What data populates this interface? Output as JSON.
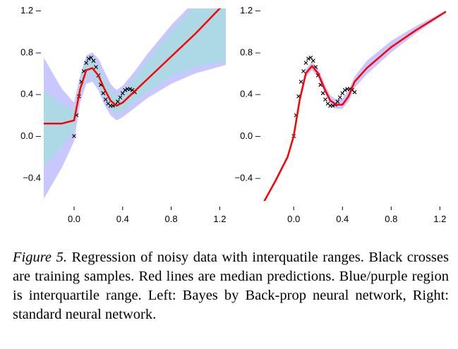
{
  "caption": {
    "label": "Figure 5.",
    "text": "Regression of noisy data with interquatile ranges. Black crosses are training samples. Red lines are median predictions. Blue/purple region is interquartile range. Left: Bayes by Back-prop neural network, Right: standard neural network."
  },
  "colors": {
    "samples": "#000000",
    "median": "#ff0000",
    "iqr_inner": "#add8e6",
    "iqr_outer": "#c8c8ff"
  },
  "chart_data": [
    {
      "type": "line",
      "title": "",
      "xlabel": "",
      "ylabel": "",
      "xlim": [
        -0.25,
        1.25
      ],
      "ylim": [
        -0.62,
        1.22
      ],
      "xticks": [
        0.0,
        0.4,
        0.8,
        1.2
      ],
      "xtick_labels": [
        "0.0",
        "0.4",
        "0.8",
        "1.2"
      ],
      "yticks": [
        -0.4,
        0.0,
        0.4,
        0.8,
        1.2
      ],
      "ytick_labels": [
        "−0.4",
        "0.0 –",
        "0.4 –",
        "0.8 –",
        "1.2 –"
      ],
      "grid": false,
      "legend": "none",
      "series": [
        {
          "role": "training samples",
          "x": [
            0.0,
            0.02,
            0.04,
            0.06,
            0.08,
            0.1,
            0.12,
            0.14,
            0.16,
            0.18,
            0.2,
            0.22,
            0.24,
            0.26,
            0.28,
            0.3,
            0.32,
            0.34,
            0.36,
            0.38,
            0.4,
            0.42,
            0.44,
            0.46,
            0.48,
            0.5
          ],
          "y": [
            0.0,
            0.2,
            0.38,
            0.52,
            0.62,
            0.7,
            0.74,
            0.75,
            0.72,
            0.66,
            0.58,
            0.49,
            0.41,
            0.35,
            0.31,
            0.29,
            0.29,
            0.3,
            0.33,
            0.37,
            0.41,
            0.44,
            0.45,
            0.45,
            0.44,
            0.42
          ]
        },
        {
          "role": "median prediction",
          "x": [
            -0.25,
            -0.1,
            0.0,
            0.05,
            0.1,
            0.15,
            0.2,
            0.25,
            0.3,
            0.35,
            0.4,
            0.5,
            0.6,
            0.8,
            1.0,
            1.2,
            1.25
          ],
          "y": [
            0.12,
            0.12,
            0.15,
            0.45,
            0.63,
            0.65,
            0.58,
            0.45,
            0.34,
            0.29,
            0.32,
            0.43,
            0.54,
            0.76,
            0.98,
            1.22,
            1.27
          ]
        },
        {
          "role": "interquartile range (inner)",
          "x": [
            -0.25,
            -0.1,
            0.0,
            0.05,
            0.1,
            0.15,
            0.2,
            0.25,
            0.3,
            0.35,
            0.4,
            0.5,
            0.6,
            0.8,
            1.0,
            1.25
          ],
          "lower": [
            -0.3,
            -0.1,
            0.05,
            0.38,
            0.56,
            0.58,
            0.5,
            0.36,
            0.26,
            0.21,
            0.24,
            0.33,
            0.42,
            0.57,
            0.66,
            0.72
          ],
          "upper": [
            0.45,
            0.3,
            0.25,
            0.53,
            0.72,
            0.74,
            0.68,
            0.55,
            0.44,
            0.38,
            0.42,
            0.56,
            0.72,
            1.0,
            1.25,
            1.35
          ]
        },
        {
          "role": "interquartile range (outer)",
          "x": [
            -0.25,
            -0.1,
            0.0,
            0.05,
            0.1,
            0.15,
            0.2,
            0.25,
            0.3,
            0.35,
            0.4,
            0.5,
            0.6,
            0.8,
            1.0,
            1.25
          ],
          "lower": [
            -0.6,
            -0.3,
            -0.05,
            0.32,
            0.5,
            0.52,
            0.44,
            0.3,
            0.2,
            0.15,
            0.18,
            0.27,
            0.36,
            0.5,
            0.6,
            0.68
          ],
          "upper": [
            0.75,
            0.45,
            0.32,
            0.58,
            0.77,
            0.8,
            0.74,
            0.62,
            0.5,
            0.44,
            0.48,
            0.62,
            0.78,
            1.06,
            1.3,
            1.4
          ]
        }
      ]
    },
    {
      "type": "line",
      "title": "",
      "xlabel": "",
      "ylabel": "",
      "xlim": [
        -0.25,
        1.25
      ],
      "ylim": [
        -0.62,
        1.22
      ],
      "xticks": [
        0.0,
        0.4,
        0.8,
        1.2
      ],
      "xtick_labels": [
        "0.0",
        "0.4",
        "0.8",
        "1.2"
      ],
      "yticks": [
        -0.4,
        0.0,
        0.4,
        0.8,
        1.2
      ],
      "ytick_labels": [
        "−0.4 –",
        "0.0 –",
        "0.4 –",
        "0.8 –",
        "1.2 –"
      ],
      "grid": false,
      "legend": "none",
      "series": [
        {
          "role": "training samples",
          "x": [
            0.0,
            0.02,
            0.04,
            0.06,
            0.08,
            0.1,
            0.12,
            0.14,
            0.16,
            0.18,
            0.2,
            0.22,
            0.24,
            0.26,
            0.28,
            0.3,
            0.32,
            0.34,
            0.36,
            0.38,
            0.4,
            0.42,
            0.44,
            0.46,
            0.48,
            0.5
          ],
          "y": [
            0.0,
            0.2,
            0.38,
            0.52,
            0.62,
            0.7,
            0.74,
            0.75,
            0.72,
            0.66,
            0.58,
            0.49,
            0.41,
            0.35,
            0.31,
            0.29,
            0.29,
            0.3,
            0.33,
            0.37,
            0.41,
            0.44,
            0.45,
            0.45,
            0.44,
            0.42
          ]
        },
        {
          "role": "median prediction",
          "x": [
            -0.25,
            -0.15,
            -0.05,
            0.0,
            0.05,
            0.1,
            0.15,
            0.2,
            0.25,
            0.3,
            0.35,
            0.4,
            0.45,
            0.5,
            0.6,
            0.8,
            1.0,
            1.25
          ],
          "y": [
            -0.64,
            -0.43,
            -0.2,
            0.0,
            0.35,
            0.6,
            0.67,
            0.6,
            0.46,
            0.34,
            0.3,
            0.3,
            0.38,
            0.52,
            0.65,
            0.85,
            1.01,
            1.19
          ]
        },
        {
          "role": "interquartile range",
          "x": [
            -0.25,
            -0.05,
            0.0,
            0.05,
            0.1,
            0.15,
            0.2,
            0.25,
            0.3,
            0.35,
            0.4,
            0.45,
            0.5,
            0.6,
            0.8,
            1.0,
            1.25
          ],
          "lower": [
            -0.65,
            -0.22,
            -0.03,
            0.31,
            0.56,
            0.63,
            0.56,
            0.42,
            0.3,
            0.26,
            0.26,
            0.33,
            0.46,
            0.59,
            0.8,
            0.98,
            1.18
          ],
          "upper": [
            -0.63,
            -0.18,
            0.03,
            0.39,
            0.64,
            0.71,
            0.65,
            0.51,
            0.39,
            0.35,
            0.36,
            0.44,
            0.57,
            0.72,
            0.91,
            1.05,
            1.2
          ]
        }
      ]
    }
  ]
}
